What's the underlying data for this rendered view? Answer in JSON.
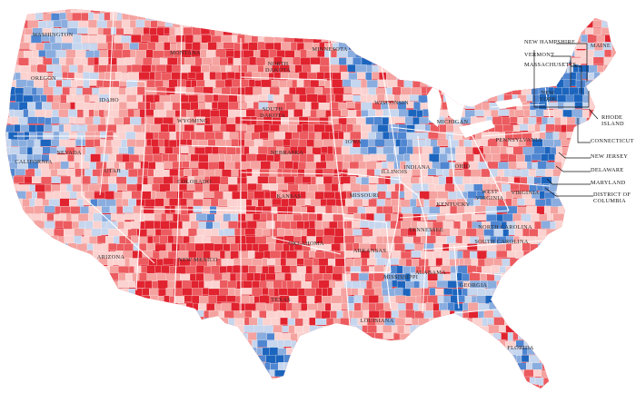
{
  "palette": {
    "strong_red": "#e0232f",
    "medium_red": "#ec5b5f",
    "light_red": "#f5a3a0",
    "very_light_red": "#fbd2cf",
    "very_light_blue": "#c6d6ee",
    "light_blue": "#8aaddf",
    "medium_blue": "#4f86d1",
    "strong_blue": "#1c65be",
    "water": "#ffffff",
    "border": "#ffffff"
  },
  "states": [
    {
      "id": "WA",
      "label": "WASHINGTON"
    },
    {
      "id": "OR",
      "label": "OREGON"
    },
    {
      "id": "CA",
      "label": "CALIFORNIA"
    },
    {
      "id": "NV",
      "label": "NEVADA"
    },
    {
      "id": "ID",
      "label": "IDAHO"
    },
    {
      "id": "MT",
      "label": "MONTANA"
    },
    {
      "id": "WY",
      "label": "WYOMING"
    },
    {
      "id": "UT",
      "label": "UTAH"
    },
    {
      "id": "AZ",
      "label": "ARIZONA"
    },
    {
      "id": "CO",
      "label": "COLORADO"
    },
    {
      "id": "NM",
      "label": "NEW MEXICO"
    },
    {
      "id": "ND",
      "label": "NORTH DAKOTA"
    },
    {
      "id": "SD",
      "label": "SOUTH DAKOTA"
    },
    {
      "id": "NE",
      "label": "NEBRASKA"
    },
    {
      "id": "KS",
      "label": "KANSAS"
    },
    {
      "id": "OK",
      "label": "OKLAHOMA"
    },
    {
      "id": "TX",
      "label": "TEXAS"
    },
    {
      "id": "MN",
      "label": "MINNESOTA"
    },
    {
      "id": "IA",
      "label": "IOWA"
    },
    {
      "id": "MO",
      "label": "MISSOURI"
    },
    {
      "id": "AR",
      "label": "ARKANSAS"
    },
    {
      "id": "LA",
      "label": "LOUISIANA"
    },
    {
      "id": "WI",
      "label": "WISCONSIN"
    },
    {
      "id": "IL",
      "label": "ILLINOIS"
    },
    {
      "id": "MI",
      "label": "MICHIGAN"
    },
    {
      "id": "IN",
      "label": "INDIANA"
    },
    {
      "id": "OH",
      "label": "OHIO"
    },
    {
      "id": "KY",
      "label": "KENTUCKY"
    },
    {
      "id": "TN",
      "label": "TENNESSEE"
    },
    {
      "id": "MS",
      "label": "MISSISSIPPI"
    },
    {
      "id": "AL",
      "label": "ALABAMA"
    },
    {
      "id": "GA",
      "label": "GEORGIA"
    },
    {
      "id": "FL",
      "label": "FLORIDA"
    },
    {
      "id": "SC",
      "label": "SOUTH CAROLINA"
    },
    {
      "id": "NC",
      "label": "NORTH CAROLINA"
    },
    {
      "id": "VA",
      "label": "VIRGINIA"
    },
    {
      "id": "WV",
      "label": "WEST VIRGINIA"
    },
    {
      "id": "PA",
      "label": "PENNSYLVANIA"
    },
    {
      "id": "NY",
      "label": "NEW YORK"
    },
    {
      "id": "ME",
      "label": "MAINE"
    }
  ],
  "callouts": [
    {
      "id": "NH",
      "label": "NEW HAMPSHIRE"
    },
    {
      "id": "VT",
      "label": "VERMONT"
    },
    {
      "id": "MA",
      "label": "MASSACHUSETTS"
    },
    {
      "id": "RI",
      "label": "RHODE ISLAND"
    },
    {
      "id": "CT",
      "label": "CONNECTICUT"
    },
    {
      "id": "NJ",
      "label": "NEW JERSEY"
    },
    {
      "id": "DE",
      "label": "DELAWARE"
    },
    {
      "id": "MD",
      "label": "MARYLAND"
    },
    {
      "id": "DC",
      "label": "DISTRICT OF COLUMBIA"
    }
  ]
}
